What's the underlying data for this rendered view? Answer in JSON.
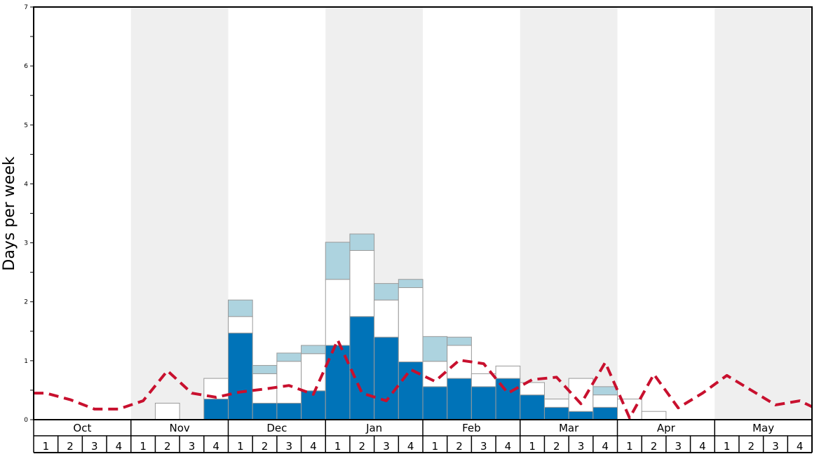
{
  "chart_data": {
    "type": "bar",
    "ylabel": "Days per week",
    "ylim": [
      0,
      7
    ],
    "y_ticks": [
      "0",
      "1",
      "2",
      "3",
      "4",
      "5",
      "6",
      "7"
    ],
    "months": [
      "Oct",
      "Nov",
      "Dec",
      "Jan",
      "Feb",
      "Mar",
      "Apr",
      "May"
    ],
    "week_labels": [
      "1",
      "2",
      "3",
      "4"
    ],
    "shaded_months": [
      1,
      3,
      5,
      7
    ],
    "colors": {
      "dark": "#0073b8",
      "white": "#ffffff",
      "light": "#add3df",
      "line": "#c8102e",
      "shade": "#efefef",
      "bar_edge": "#9a9a9a"
    },
    "series": [
      {
        "color": "dark",
        "values": [
          0,
          0,
          0,
          0,
          0,
          0,
          0,
          0.35,
          1.47,
          0.28,
          0.28,
          0.49,
          1.26,
          1.75,
          1.4,
          0.98,
          0.56,
          0.7,
          0.56,
          0.7,
          0.42,
          0.21,
          0.14,
          0.21,
          0,
          0,
          0,
          0,
          0,
          0,
          0,
          0
        ]
      },
      {
        "color": "white",
        "values": [
          0,
          0,
          0,
          0,
          0,
          0.28,
          0,
          0.35,
          0.28,
          0.5,
          0.71,
          0.63,
          1.12,
          1.12,
          0.63,
          1.26,
          0.43,
          0.56,
          0.22,
          0.21,
          0.21,
          0.14,
          0.56,
          0.21,
          0.35,
          0.14,
          0,
          0,
          0,
          0,
          0,
          0
        ]
      },
      {
        "color": "light",
        "values": [
          0,
          0,
          0,
          0,
          0,
          0,
          0,
          0,
          0.28,
          0.14,
          0.14,
          0.14,
          0.63,
          0.28,
          0.28,
          0.14,
          0.42,
          0.14,
          0,
          0,
          0,
          0,
          0,
          0.14,
          0,
          0,
          0,
          0,
          0,
          0,
          0,
          0
        ]
      }
    ],
    "line": {
      "style": "dashed",
      "values": [
        0.45,
        0.34,
        0.18,
        0.18,
        0.32,
        0.83,
        0.45,
        0.38,
        0.47,
        0.52,
        0.58,
        0.43,
        1.35,
        0.45,
        0.32,
        0.85,
        0.65,
        1.01,
        0.95,
        0.45,
        0.68,
        0.72,
        0.27,
        0.97,
        0.03,
        0.77,
        0.2,
        0.45,
        0.75,
        0.5,
        0.25,
        0.32
      ]
    }
  }
}
